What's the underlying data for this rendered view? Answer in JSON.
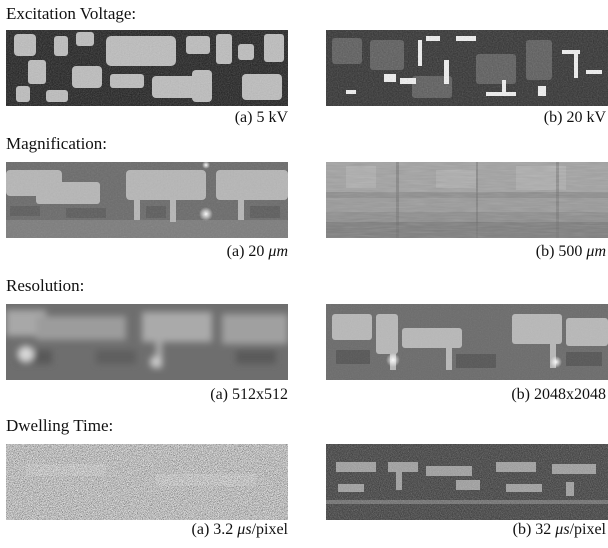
{
  "figure": {
    "sections": [
      {
        "title": "Excitation Voltage:",
        "left_caption": "(a) 5 kV",
        "right_caption": "(b) 20 kV"
      },
      {
        "title": "Magnification:",
        "left_caption_prefix": "(a) 20 ",
        "left_caption_unit": "μm",
        "right_caption_prefix": "(b) 500 ",
        "right_caption_unit": "μm"
      },
      {
        "title": "Resolution:",
        "left_caption": "(a) 512x512",
        "right_caption": "(b) 2048x2048"
      },
      {
        "title": "Dwelling Time:",
        "left_caption_prefix": "(a) 3.2 ",
        "left_caption_unit": "μs",
        "left_caption_suffix": "/pixel",
        "right_caption_prefix": "(b) 32 ",
        "right_caption_unit": "μs",
        "right_caption_suffix": "/pixel"
      }
    ]
  }
}
